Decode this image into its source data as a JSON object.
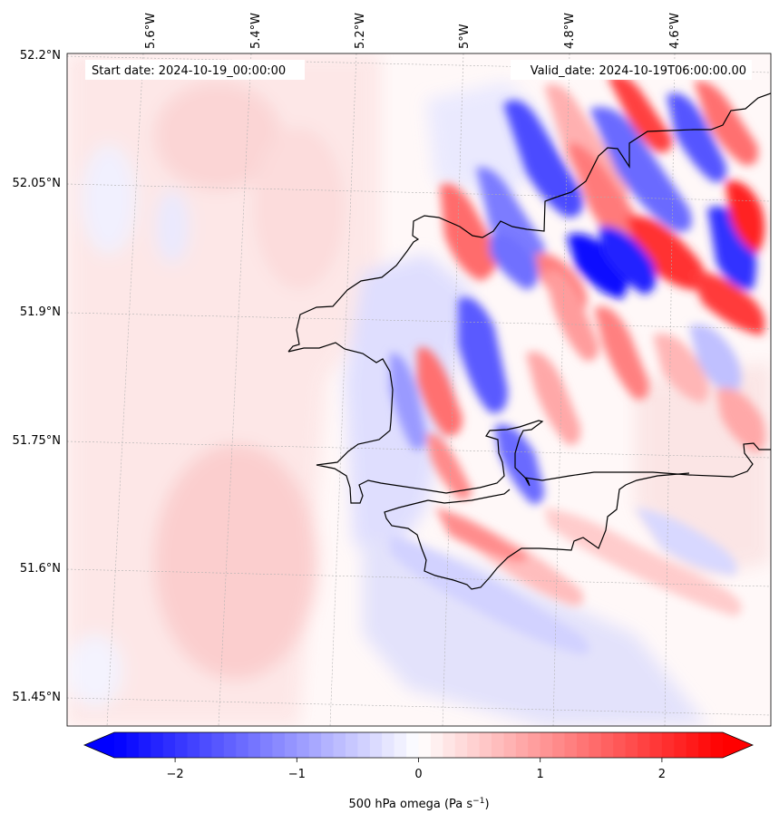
{
  "map": {
    "start_date": "Start date: 2024-10-19_00:00:00",
    "valid_date": "Valid_date: 2024-10-19T06:00:00.00",
    "lon_labels": [
      "5.6°W",
      "5.4°W",
      "5.2°W",
      "5°W",
      "4.8°W",
      "4.6°W"
    ],
    "lat_labels": [
      "52.2°N",
      "52.05°N",
      "51.9°N",
      "51.75°N",
      "51.6°N",
      "51.45°N"
    ],
    "field": "500 hPa omega",
    "coastline_color": "#000000",
    "gridline_color": "#b0b0b0"
  },
  "colorbar": {
    "label_prefix": "500 hPa omega (Pa s",
    "label_exponent": "−1",
    "label_suffix": ")",
    "ticks": [
      "−2",
      "−1",
      "0",
      "1",
      "2"
    ],
    "tick_values": [
      -2,
      -1,
      0,
      1,
      2
    ],
    "range": [
      -2.5,
      2.5
    ],
    "negative_color": "#0000ff",
    "zero_color": "#ffffff",
    "positive_color": "#ff0000",
    "extend": "both"
  }
}
